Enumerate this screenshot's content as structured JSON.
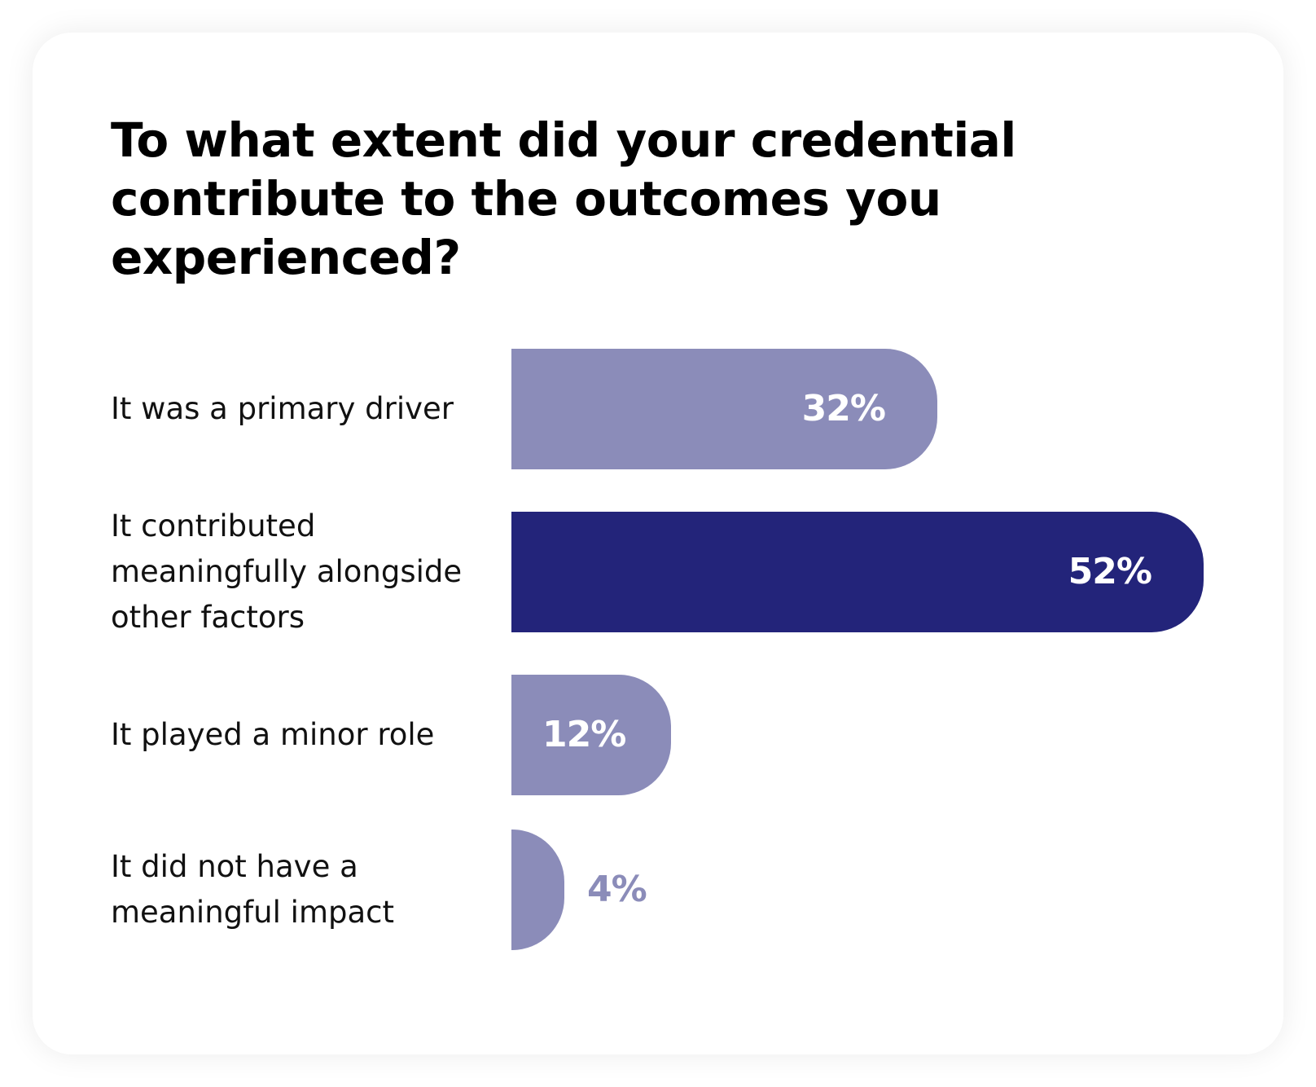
{
  "chart_data": {
    "type": "bar",
    "orientation": "horizontal",
    "title": "To what extent did your credential contribute to the outcomes you experienced?",
    "categories": [
      "It was a primary driver",
      "It contributed meaningfully alongside other factors",
      "It played a minor role",
      "It did not have a meaningful impact"
    ],
    "values": [
      32,
      52,
      12,
      4
    ],
    "value_labels": [
      "32%",
      "52%",
      "12%",
      "4%"
    ],
    "unit": "%",
    "xlim": [
      0,
      52
    ],
    "grid": false,
    "legend": "none",
    "colors": {
      "default_bar": "#8b8cb9",
      "highlight_bar": "#23247a",
      "label_on_bar": "#ffffff",
      "label_outside_bar": "#8b8cb9"
    },
    "highlight_index": 1
  }
}
